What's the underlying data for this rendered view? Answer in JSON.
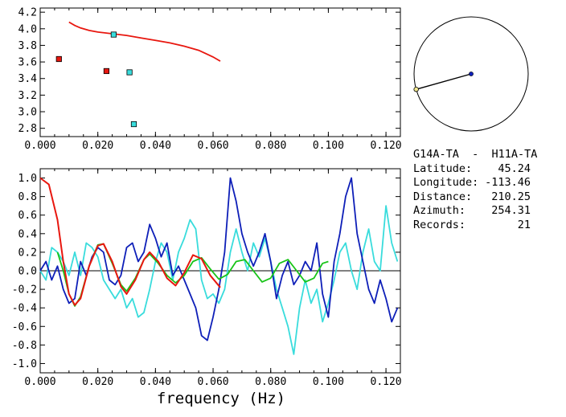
{
  "info": {
    "title": "G14A-TA  -  H11A-TA",
    "rows": [
      {
        "label": "Latitude:",
        "value": "45.24"
      },
      {
        "label": "Longitude:",
        "value": "-113.46"
      },
      {
        "label": "Distance:",
        "value": "210.25"
      },
      {
        "label": "Azimuth:",
        "value": "254.31"
      },
      {
        "label": "Records:",
        "value": "21"
      }
    ]
  },
  "colors": {
    "red": "#e8170f",
    "green": "#18c418",
    "blue": "#0e1fb8",
    "cyan": "#39dcdc"
  },
  "chart_data": [
    {
      "type": "scatter",
      "panel": "dispersion",
      "xlim": [
        0,
        0.125
      ],
      "ylim": [
        2.7,
        4.25
      ],
      "xticks": [
        "0.000",
        "0.020",
        "0.040",
        "0.060",
        "0.080",
        "0.100",
        "0.120"
      ],
      "yticks": [
        "2.8",
        "3.0",
        "3.2",
        "3.4",
        "3.6",
        "3.8",
        "4.0",
        "4.2"
      ],
      "curve": {
        "color": "red",
        "x": [
          0.01,
          0.012,
          0.014,
          0.017,
          0.02,
          0.025,
          0.03,
          0.035,
          0.04,
          0.045,
          0.05,
          0.055,
          0.06,
          0.0625
        ],
        "y": [
          4.08,
          4.04,
          4.01,
          3.98,
          3.96,
          3.94,
          3.92,
          3.89,
          3.86,
          3.83,
          3.79,
          3.74,
          3.66,
          3.61
        ]
      },
      "points": [
        {
          "x": 0.0065,
          "y": 3.635,
          "color": "red"
        },
        {
          "x": 0.023,
          "y": 3.49,
          "color": "red"
        },
        {
          "x": 0.0255,
          "y": 3.93,
          "color": "cyan"
        },
        {
          "x": 0.031,
          "y": 3.475,
          "color": "cyan"
        },
        {
          "x": 0.0325,
          "y": 2.85,
          "color": "cyan"
        }
      ]
    },
    {
      "type": "line",
      "panel": "correlation",
      "xlabel": "frequency (Hz)",
      "xlim": [
        0,
        0.125
      ],
      "ylim": [
        -1.1,
        1.1
      ],
      "xticks": [
        "0.000",
        "0.020",
        "0.040",
        "0.060",
        "0.080",
        "0.100",
        "0.120"
      ],
      "yticks": [
        "1.0",
        "0.8",
        "0.6",
        "0.4",
        "0.2",
        "0.0",
        "-0.2",
        "-0.4",
        "-0.6",
        "-0.8",
        "-1.0"
      ],
      "series": [
        {
          "color": "red",
          "x": [
            0.0,
            0.003,
            0.006,
            0.008,
            0.01,
            0.012,
            0.014,
            0.017,
            0.02,
            0.022,
            0.025,
            0.028,
            0.03,
            0.033,
            0.036,
            0.038,
            0.041,
            0.044,
            0.047,
            0.05,
            0.053,
            0.056,
            0.059,
            0.0625
          ],
          "y": [
            1.0,
            0.93,
            0.55,
            0.1,
            -0.25,
            -0.37,
            -0.3,
            0.05,
            0.27,
            0.29,
            0.1,
            -0.17,
            -0.25,
            -0.1,
            0.12,
            0.2,
            0.1,
            -0.08,
            -0.16,
            -0.02,
            0.17,
            0.13,
            -0.05,
            -0.18
          ]
        },
        {
          "color": "green",
          "x": [
            0.006,
            0.008,
            0.01,
            0.012,
            0.014,
            0.017,
            0.02,
            0.022,
            0.025,
            0.028,
            0.03,
            0.033,
            0.036,
            0.038,
            0.041,
            0.044,
            0.047,
            0.05,
            0.053,
            0.056,
            0.059,
            0.062,
            0.065,
            0.068,
            0.071,
            0.074,
            0.077,
            0.08,
            0.083,
            0.086,
            0.089,
            0.092,
            0.095,
            0.098,
            0.1
          ],
          "y": [
            0.2,
            0.0,
            -0.25,
            -0.38,
            -0.28,
            0.05,
            0.28,
            0.29,
            0.08,
            -0.15,
            -0.22,
            -0.08,
            0.12,
            0.18,
            0.08,
            -0.05,
            -0.13,
            -0.05,
            0.1,
            0.14,
            0.02,
            -0.09,
            -0.04,
            0.1,
            0.12,
            0.0,
            -0.12,
            -0.08,
            0.08,
            0.12,
            0.0,
            -0.12,
            -0.08,
            0.08,
            0.1
          ]
        },
        {
          "color": "blue",
          "x": [
            0.0,
            0.002,
            0.004,
            0.006,
            0.008,
            0.01,
            0.012,
            0.014,
            0.016,
            0.018,
            0.02,
            0.022,
            0.024,
            0.026,
            0.028,
            0.03,
            0.032,
            0.034,
            0.036,
            0.038,
            0.04,
            0.042,
            0.044,
            0.046,
            0.048,
            0.05,
            0.052,
            0.054,
            0.056,
            0.058,
            0.06,
            0.062,
            0.064,
            0.066,
            0.068,
            0.07,
            0.072,
            0.074,
            0.076,
            0.078,
            0.08,
            0.082,
            0.084,
            0.086,
            0.088,
            0.09,
            0.092,
            0.094,
            0.096,
            0.098,
            0.1,
            0.102,
            0.104,
            0.106,
            0.108,
            0.11,
            0.112,
            0.114,
            0.116,
            0.118,
            0.12,
            0.122,
            0.124
          ],
          "y": [
            0.0,
            0.1,
            -0.1,
            0.05,
            -0.2,
            -0.35,
            -0.3,
            0.1,
            -0.05,
            0.15,
            0.25,
            0.2,
            -0.1,
            -0.15,
            -0.05,
            0.25,
            0.3,
            0.1,
            0.2,
            0.5,
            0.35,
            0.15,
            0.3,
            -0.05,
            0.05,
            -0.1,
            -0.25,
            -0.4,
            -0.7,
            -0.75,
            -0.5,
            -0.2,
            0.2,
            1.0,
            0.75,
            0.4,
            0.2,
            0.05,
            0.2,
            0.4,
            0.1,
            -0.3,
            -0.05,
            0.1,
            -0.15,
            -0.05,
            0.1,
            0.0,
            0.3,
            -0.25,
            -0.5,
            0.1,
            0.4,
            0.8,
            1.0,
            0.4,
            0.1,
            -0.2,
            -0.35,
            -0.1,
            -0.3,
            -0.55,
            -0.4
          ]
        },
        {
          "color": "cyan",
          "x": [
            0.0,
            0.002,
            0.004,
            0.006,
            0.008,
            0.01,
            0.012,
            0.014,
            0.016,
            0.018,
            0.02,
            0.022,
            0.024,
            0.026,
            0.028,
            0.03,
            0.032,
            0.034,
            0.036,
            0.038,
            0.04,
            0.042,
            0.044,
            0.046,
            0.048,
            0.05,
            0.052,
            0.054,
            0.056,
            0.058,
            0.06,
            0.062,
            0.064,
            0.066,
            0.068,
            0.07,
            0.072,
            0.074,
            0.076,
            0.078,
            0.08,
            0.082,
            0.084,
            0.086,
            0.088,
            0.09,
            0.092,
            0.094,
            0.096,
            0.098,
            0.1,
            0.102,
            0.104,
            0.106,
            0.108,
            0.11,
            0.112,
            0.114,
            0.116,
            0.118,
            0.12,
            0.122,
            0.124
          ],
          "y": [
            0.0,
            -0.1,
            0.25,
            0.2,
            0.1,
            -0.05,
            0.2,
            -0.05,
            0.3,
            0.25,
            0.15,
            -0.1,
            -0.2,
            -0.3,
            -0.2,
            -0.4,
            -0.3,
            -0.5,
            -0.45,
            -0.2,
            0.1,
            0.3,
            0.2,
            -0.1,
            0.2,
            0.35,
            0.55,
            0.45,
            -0.1,
            -0.3,
            -0.25,
            -0.35,
            -0.2,
            0.2,
            0.45,
            0.2,
            0.0,
            0.3,
            0.15,
            0.35,
            0.1,
            -0.2,
            -0.4,
            -0.6,
            -0.9,
            -0.4,
            -0.1,
            -0.35,
            -0.2,
            -0.55,
            -0.35,
            -0.1,
            0.2,
            0.3,
            0.0,
            -0.2,
            0.2,
            0.45,
            0.1,
            0.0,
            0.7,
            0.3,
            0.1
          ]
        }
      ]
    },
    {
      "type": "scatter",
      "panel": "map-circle",
      "note": "azimuth indicator",
      "azimuth_deg": 254.31
    }
  ]
}
